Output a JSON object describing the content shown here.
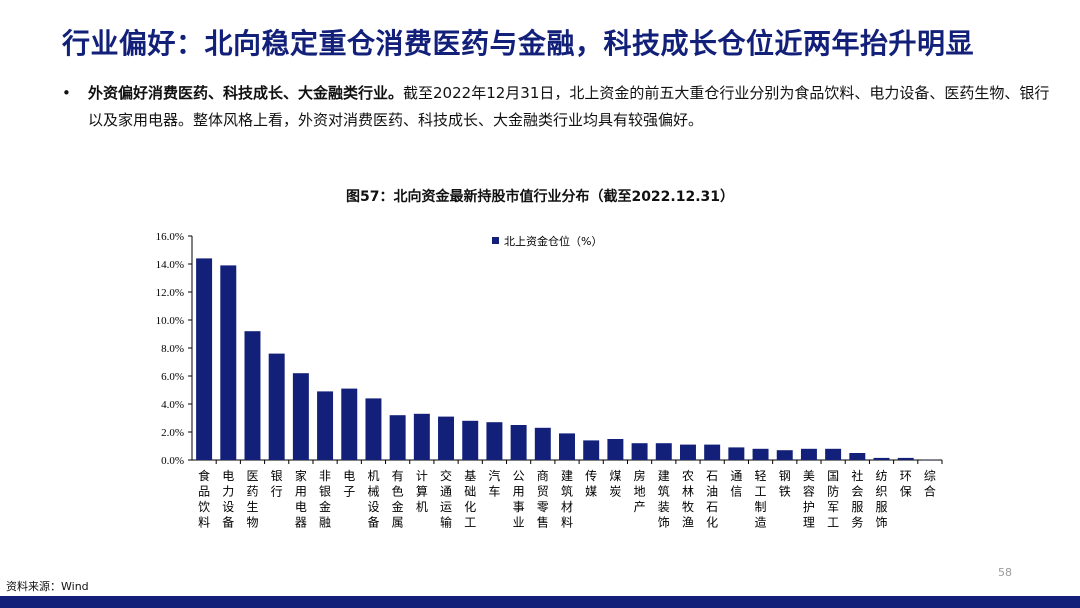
{
  "slide": {
    "title": "行业偏好：北向稳定重仓消费医药与金融，科技成长仓位近两年抬升明显",
    "bullet_marker": "•",
    "bullet_bold": "外资偏好消费医药、科技成长、大金融类行业。",
    "bullet_rest": "截至2022年12月31日，北上资金的前五大重仓行业分别为食品饮料、电力设备、医药生物、银行以及家用电器。整体风格上看，外资对消费医药、科技成长、大金融类行业均具有较强偏好。",
    "page_number": "58",
    "source": "资料来源：Wind"
  },
  "colors": {
    "title": "#12207a",
    "bar": "#12207a",
    "footer": "#12207a"
  },
  "chart_data": {
    "type": "bar",
    "title": "图57：北向资金最新持股市值行业分布（截至2022.12.31）",
    "legend": "北上资金仓位（%）",
    "legend_position": "top-left",
    "grid": false,
    "ylim": [
      0,
      16
    ],
    "yticks": [
      "0.0%",
      "2.0%",
      "4.0%",
      "6.0%",
      "8.0%",
      "10.0%",
      "12.0%",
      "14.0%",
      "16.0%"
    ],
    "categories": [
      "食品饮料",
      "电力设备",
      "医药生物",
      "银行",
      "家用电器",
      "非银金融",
      "电子",
      "机械设备",
      "有色金属",
      "计算机",
      "交通运输",
      "基础化工",
      "汽车",
      "公用事业",
      "商贸零售",
      "建筑材料",
      "传媒",
      "煤炭",
      "房地产",
      "建筑装饰",
      "农林牧渔",
      "石油石化",
      "通信",
      "轻工制造",
      "钢铁",
      "美容护理",
      "国防军工",
      "社会服务",
      "纺织服饰",
      "环保",
      "综合"
    ],
    "values": [
      14.4,
      13.9,
      9.2,
      7.6,
      6.2,
      4.9,
      5.1,
      4.4,
      3.2,
      3.3,
      3.1,
      2.8,
      2.7,
      2.5,
      2.3,
      1.9,
      1.4,
      1.5,
      1.2,
      1.2,
      1.1,
      1.1,
      0.9,
      0.8,
      0.7,
      0.8,
      0.8,
      0.5,
      0.15,
      0.15,
      0.02
    ]
  }
}
